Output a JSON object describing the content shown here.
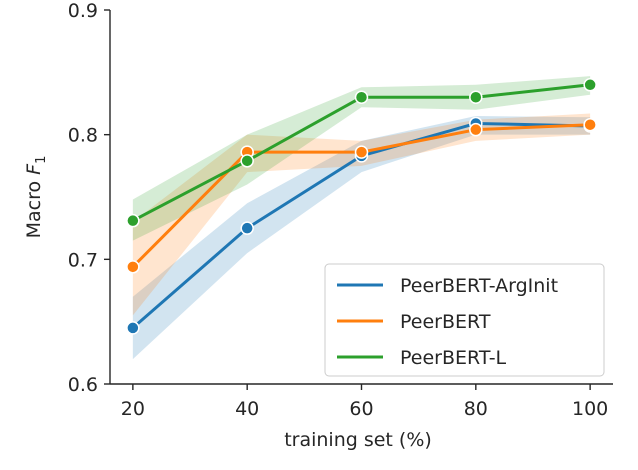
{
  "chart_data": {
    "type": "line",
    "xlabel": "training set (%)",
    "ylabel_main": "Macro ",
    "ylabel_italic": "F",
    "ylabel_sub": "1",
    "xlim": [
      16,
      104
    ],
    "ylim": [
      0.6,
      0.9
    ],
    "xticks": [
      20,
      40,
      60,
      80,
      100
    ],
    "yticks": [
      0.6,
      0.7,
      0.8,
      0.9
    ],
    "legend_position": "bottom-right",
    "grid": false,
    "series": [
      {
        "name": "PeerBERT-ArgInit",
        "color": "#1f77b4",
        "x": [
          20,
          40,
          60,
          80,
          100
        ],
        "values": [
          0.645,
          0.725,
          0.783,
          0.809,
          0.807
        ],
        "ci_low": [
          0.62,
          0.705,
          0.77,
          0.8,
          0.8
        ],
        "ci_high": [
          0.67,
          0.745,
          0.795,
          0.815,
          0.814
        ]
      },
      {
        "name": "PeerBERT",
        "color": "#ff7f0e",
        "x": [
          20,
          40,
          60,
          80,
          100
        ],
        "values": [
          0.694,
          0.786,
          0.786,
          0.804,
          0.808
        ],
        "ci_low": [
          0.655,
          0.77,
          0.775,
          0.795,
          0.8
        ],
        "ci_high": [
          0.73,
          0.8,
          0.795,
          0.812,
          0.817
        ]
      },
      {
        "name": "PeerBERT-L",
        "color": "#2ca02c",
        "x": [
          20,
          40,
          60,
          80,
          100
        ],
        "values": [
          0.731,
          0.779,
          0.83,
          0.83,
          0.84
        ],
        "ci_low": [
          0.715,
          0.76,
          0.822,
          0.82,
          0.832
        ],
        "ci_high": [
          0.748,
          0.8,
          0.838,
          0.84,
          0.847
        ]
      }
    ]
  }
}
